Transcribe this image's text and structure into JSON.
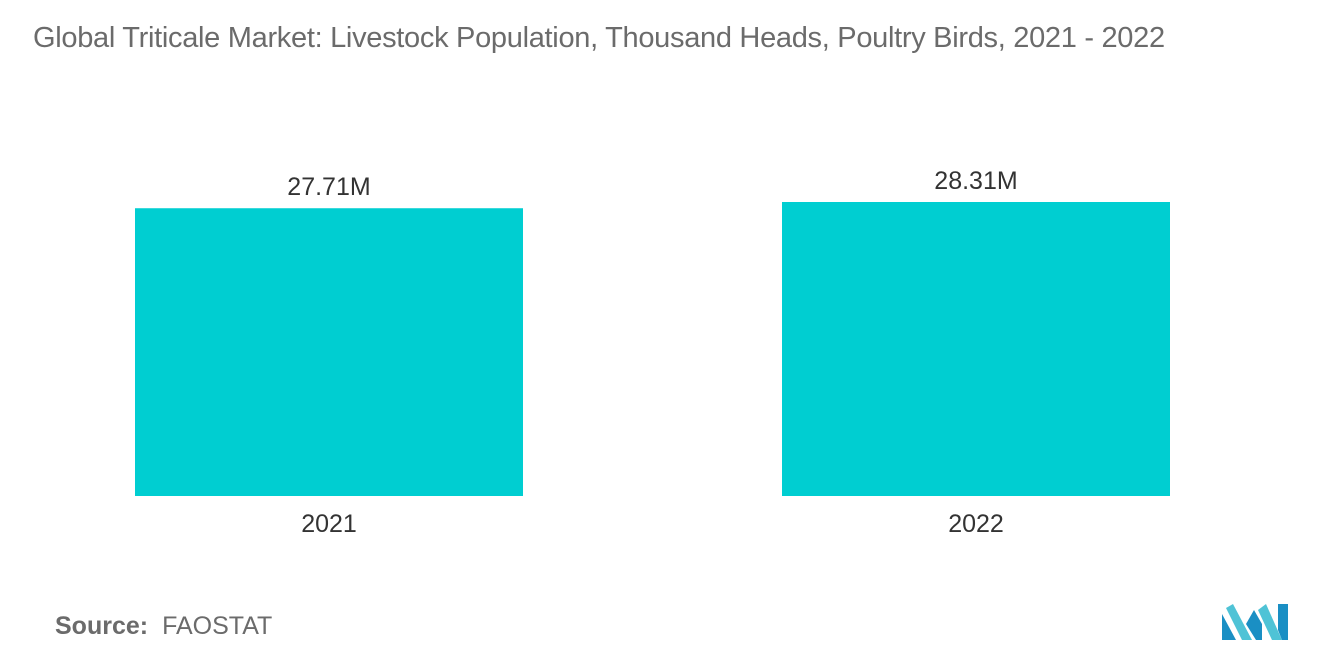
{
  "title": "Global Triticale Market: Livestock Population, Thousand Heads, Poultry Birds, 2021 - 2022",
  "source_label": "Source:",
  "source_value": "FAOSTAT",
  "logo_icon": "mordor-intelligence-logo-icon",
  "colors": {
    "bar": "#00CED1",
    "title": "#6b6b6b",
    "text": "#333333"
  },
  "chart_data": {
    "type": "bar",
    "categories": [
      "2021",
      "2022"
    ],
    "values": [
      27.71,
      28.31
    ],
    "value_labels": [
      "27.71M",
      "28.31M"
    ],
    "ylim": [
      0,
      28.31
    ],
    "grid": false,
    "legend": "none"
  }
}
